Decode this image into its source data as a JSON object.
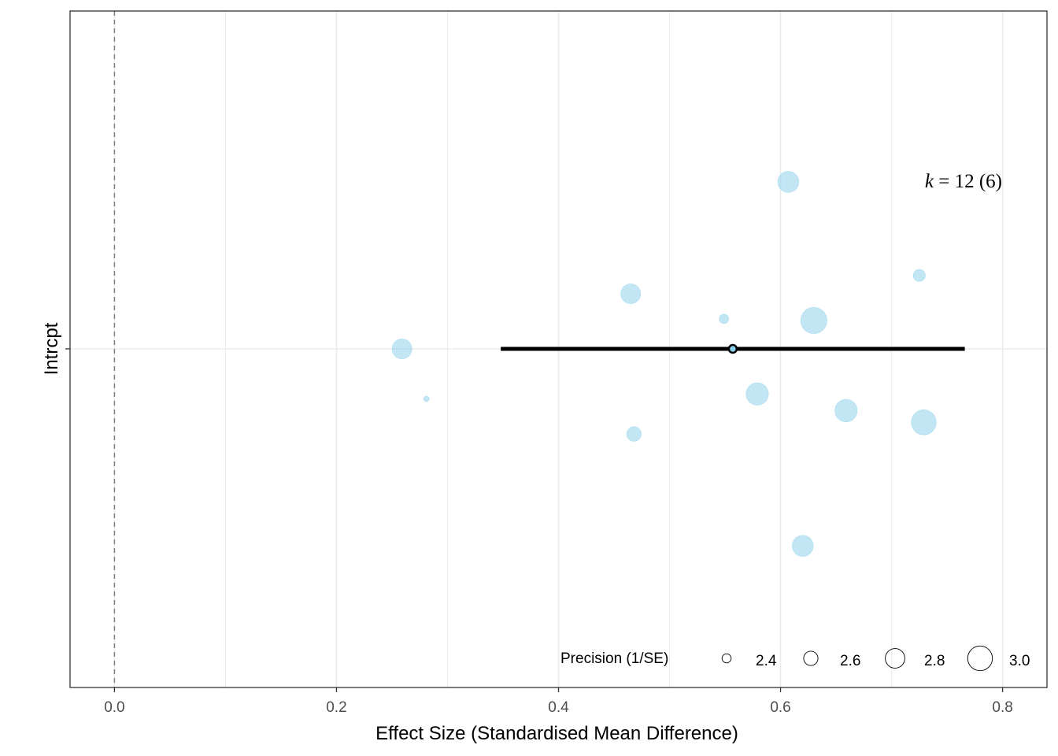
{
  "chart_data": {
    "type": "scatter",
    "subtype": "orchard-plot",
    "xlabel": "Effect Size (Standardised Mean Difference)",
    "ylabel": "",
    "categories": [
      "Intrcpt"
    ],
    "xlim": [
      -0.04,
      0.84
    ],
    "xticks": [
      0.0,
      0.2,
      0.4,
      0.6,
      0.8
    ],
    "xtick_labels": [
      "0.0",
      "0.2",
      "0.4",
      "0.6",
      "0.8"
    ],
    "grid": true,
    "reference_line_x": 0.0,
    "estimate": {
      "category": "Intrcpt",
      "x": 0.557,
      "ci_lower": 0.348,
      "ci_upper": 0.766
    },
    "points": [
      {
        "x": 0.259,
        "jitter": 0.0,
        "precision": 2.75
      },
      {
        "x": 0.281,
        "jitter": -0.3,
        "precision": 2.2
      },
      {
        "x": 0.465,
        "jitter": 0.33,
        "precision": 2.75
      },
      {
        "x": 0.468,
        "jitter": -0.51,
        "precision": 2.55
      },
      {
        "x": 0.549,
        "jitter": 0.18,
        "precision": 2.35
      },
      {
        "x": 0.579,
        "jitter": -0.27,
        "precision": 2.85
      },
      {
        "x": 0.607,
        "jitter": 1.0,
        "precision": 2.8
      },
      {
        "x": 0.62,
        "jitter": -1.18,
        "precision": 2.8
      },
      {
        "x": 0.63,
        "jitter": 0.17,
        "precision": 3.0
      },
      {
        "x": 0.659,
        "jitter": -0.37,
        "precision": 2.85
      },
      {
        "x": 0.725,
        "jitter": 0.44,
        "precision": 2.45
      },
      {
        "x": 0.729,
        "jitter": -0.44,
        "precision": 2.95
      }
    ],
    "annotation": {
      "k_symbol": "k",
      "text": " = 12 (6)"
    },
    "legend": {
      "title": "Precision (1/SE)",
      "position": "bottom-right",
      "items": [
        {
          "label": "2.4",
          "value": 2.4
        },
        {
          "label": "2.6",
          "value": 2.6
        },
        {
          "label": "2.8",
          "value": 2.8
        },
        {
          "label": "3.0",
          "value": 3.0
        }
      ]
    },
    "colors": {
      "point_fill": "#87CEEB",
      "point_stroke": "#87CEEB",
      "estimate_line": "#000000",
      "estimate_point_fill": "#87CEEB",
      "grid": "#ebebeb",
      "reference_line": "#7f7f7f"
    }
  }
}
